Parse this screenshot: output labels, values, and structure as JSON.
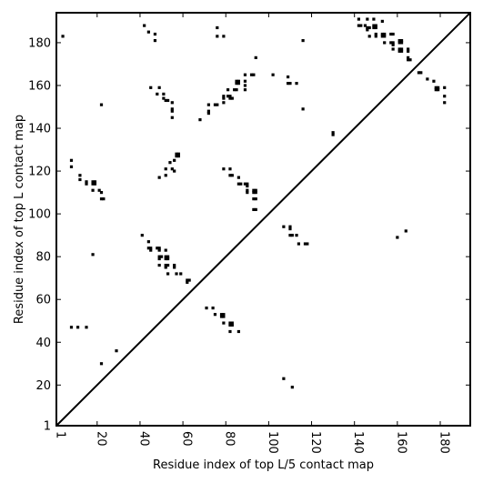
{
  "chart_data": {
    "type": "scatter",
    "xlabel": "Residue index of top L/5 contact map",
    "ylabel": "Residue index of top L contact map",
    "xlim": [
      1,
      194
    ],
    "ylim": [
      1,
      194
    ],
    "x_ticks": [
      1,
      20,
      40,
      60,
      80,
      100,
      120,
      140,
      160,
      180
    ],
    "y_ticks": [
      1,
      20,
      40,
      60,
      80,
      100,
      120,
      140,
      160,
      180
    ],
    "diagonal": true,
    "marker": "square",
    "marker_color": "#000000",
    "series": [
      {
        "points": [
          [
            4,
            183
          ],
          [
            8,
            125
          ],
          [
            8,
            122
          ],
          [
            12,
            118
          ],
          [
            12,
            116
          ],
          [
            15,
            115
          ],
          [
            15,
            114
          ],
          [
            18,
            115
          ],
          [
            18,
            114
          ],
          [
            19,
            115
          ],
          [
            19,
            114
          ],
          [
            18,
            111
          ],
          [
            21,
            111
          ],
          [
            22,
            110
          ],
          [
            22,
            107
          ],
          [
            23,
            107
          ],
          [
            22,
            151
          ],
          [
            42,
            188
          ],
          [
            44,
            185
          ],
          [
            45,
            159
          ],
          [
            47,
            184
          ],
          [
            47,
            181
          ],
          [
            49,
            159
          ],
          [
            48,
            156
          ],
          [
            51,
            156
          ],
          [
            51,
            154
          ],
          [
            52,
            153
          ],
          [
            53,
            153
          ],
          [
            55,
            152
          ],
          [
            55,
            149
          ],
          [
            55,
            148
          ],
          [
            55,
            145
          ],
          [
            49,
            117
          ],
          [
            52,
            118
          ],
          [
            52,
            121
          ],
          [
            55,
            121
          ],
          [
            54,
            124
          ],
          [
            56,
            125
          ],
          [
            57,
            127
          ],
          [
            58,
            127
          ],
          [
            57,
            128
          ],
          [
            58,
            128
          ],
          [
            56,
            120
          ],
          [
            41,
            90
          ],
          [
            44,
            87
          ],
          [
            44,
            84
          ],
          [
            45,
            84
          ],
          [
            45,
            83
          ],
          [
            48,
            84
          ],
          [
            49,
            84
          ],
          [
            49,
            83
          ],
          [
            52,
            83
          ],
          [
            49,
            80
          ],
          [
            50,
            80
          ],
          [
            49,
            79
          ],
          [
            52,
            80
          ],
          [
            53,
            80
          ],
          [
            52,
            79
          ],
          [
            53,
            79
          ],
          [
            49,
            76
          ],
          [
            52,
            76
          ],
          [
            53,
            76
          ],
          [
            52,
            75
          ],
          [
            56,
            76
          ],
          [
            56,
            75
          ],
          [
            53,
            72
          ],
          [
            57,
            72
          ],
          [
            59,
            72
          ],
          [
            62,
            69
          ],
          [
            63,
            69
          ],
          [
            62,
            68
          ],
          [
            71,
            56
          ],
          [
            74,
            56
          ],
          [
            75,
            53
          ],
          [
            78,
            53
          ],
          [
            79,
            53
          ],
          [
            78,
            52
          ],
          [
            79,
            52
          ],
          [
            79,
            49
          ],
          [
            82,
            49
          ],
          [
            83,
            49
          ],
          [
            82,
            48
          ],
          [
            83,
            48
          ],
          [
            82,
            45
          ],
          [
            86,
            45
          ],
          [
            68,
            144
          ],
          [
            72,
            151
          ],
          [
            72,
            148
          ],
          [
            72,
            147
          ],
          [
            75,
            151
          ],
          [
            76,
            151
          ],
          [
            79,
            155
          ],
          [
            79,
            154
          ],
          [
            79,
            152
          ],
          [
            81,
            155
          ],
          [
            82,
            155
          ],
          [
            82,
            154
          ],
          [
            83,
            154
          ],
          [
            81,
            158
          ],
          [
            84,
            158
          ],
          [
            85,
            158
          ],
          [
            85,
            161
          ],
          [
            86,
            161
          ],
          [
            85,
            162
          ],
          [
            86,
            162
          ],
          [
            89,
            162
          ],
          [
            89,
            160
          ],
          [
            89,
            158
          ],
          [
            89,
            165
          ],
          [
            92,
            165
          ],
          [
            93,
            165
          ],
          [
            94,
            173
          ],
          [
            76,
            187
          ],
          [
            76,
            183
          ],
          [
            79,
            183
          ],
          [
            79,
            121
          ],
          [
            82,
            121
          ],
          [
            82,
            118
          ],
          [
            83,
            118
          ],
          [
            86,
            117
          ],
          [
            86,
            114
          ],
          [
            87,
            114
          ],
          [
            89,
            114
          ],
          [
            90,
            114
          ],
          [
            90,
            113
          ],
          [
            90,
            111
          ],
          [
            90,
            110
          ],
          [
            93,
            111
          ],
          [
            94,
            111
          ],
          [
            93,
            110
          ],
          [
            94,
            110
          ],
          [
            93,
            107
          ],
          [
            94,
            107
          ],
          [
            93,
            102
          ],
          [
            94,
            102
          ],
          [
            102,
            165
          ],
          [
            109,
            164
          ],
          [
            109,
            161
          ],
          [
            110,
            161
          ],
          [
            113,
            161
          ],
          [
            116,
            181
          ],
          [
            116,
            149
          ],
          [
            107,
            94
          ],
          [
            110,
            94
          ],
          [
            110,
            93
          ],
          [
            110,
            90
          ],
          [
            111,
            90
          ],
          [
            113,
            90
          ],
          [
            114,
            86
          ],
          [
            117,
            86
          ],
          [
            118,
            86
          ],
          [
            130,
            138
          ],
          [
            130,
            137
          ],
          [
            107,
            23
          ],
          [
            111,
            19
          ],
          [
            142,
            191
          ],
          [
            142,
            188
          ],
          [
            143,
            188
          ],
          [
            145,
            188
          ],
          [
            146,
            191
          ],
          [
            146,
            187
          ],
          [
            147,
            187
          ],
          [
            146,
            186
          ],
          [
            149,
            191
          ],
          [
            149,
            188
          ],
          [
            150,
            188
          ],
          [
            149,
            187
          ],
          [
            150,
            187
          ],
          [
            147,
            183
          ],
          [
            150,
            184
          ],
          [
            150,
            183
          ],
          [
            153,
            190
          ],
          [
            153,
            184
          ],
          [
            154,
            184
          ],
          [
            153,
            183
          ],
          [
            154,
            183
          ],
          [
            154,
            180
          ],
          [
            157,
            184
          ],
          [
            158,
            184
          ],
          [
            157,
            180
          ],
          [
            158,
            180
          ],
          [
            158,
            179
          ],
          [
            158,
            177
          ],
          [
            161,
            181
          ],
          [
            162,
            181
          ],
          [
            161,
            180
          ],
          [
            162,
            180
          ],
          [
            161,
            177
          ],
          [
            162,
            177
          ],
          [
            161,
            176
          ],
          [
            162,
            176
          ],
          [
            165,
            177
          ],
          [
            165,
            176
          ],
          [
            165,
            173
          ],
          [
            165,
            172
          ],
          [
            166,
            172
          ],
          [
            170,
            166
          ],
          [
            171,
            166
          ],
          [
            174,
            163
          ],
          [
            177,
            162
          ],
          [
            178,
            159
          ],
          [
            179,
            159
          ],
          [
            178,
            158
          ],
          [
            179,
            158
          ],
          [
            182,
            159
          ],
          [
            182,
            155
          ],
          [
            182,
            152
          ],
          [
            160,
            89
          ],
          [
            164,
            92
          ],
          [
            22,
            30
          ],
          [
            29,
            36
          ],
          [
            8,
            47
          ],
          [
            11,
            47
          ],
          [
            15,
            47
          ],
          [
            18,
            81
          ]
        ]
      }
    ]
  }
}
